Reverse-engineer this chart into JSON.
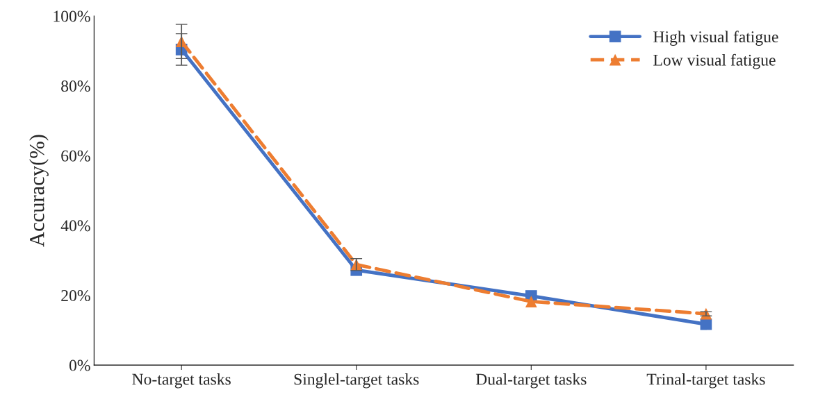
{
  "chart_data": {
    "type": "line",
    "ylabel": "Accuracy(%)",
    "categories": [
      "No-target tasks",
      "Singlel-target tasks",
      "Dual-target tasks",
      "Trinal-target tasks"
    ],
    "series": [
      {
        "name": "High visual fatigue",
        "color": "#4472c4",
        "values": [
          90.4,
          27.2,
          19.8,
          11.7
        ],
        "errors": [
          4.5,
          null,
          null,
          null
        ],
        "marker": "square",
        "line_style": "solid"
      },
      {
        "name": "Low visual fatigue",
        "color": "#ed7d31",
        "values": [
          92.7,
          28.8,
          18.2,
          14.7
        ],
        "errors": [
          4.9,
          1.7,
          null,
          0.6
        ],
        "marker": "triangle",
        "line_style": "dashed"
      }
    ],
    "ylim": [
      0,
      100
    ],
    "yticks": [
      {
        "value": 0,
        "label": "0%"
      },
      {
        "value": 20,
        "label": "20%"
      },
      {
        "value": 40,
        "label": "40%"
      },
      {
        "value": 60,
        "label": "60%"
      },
      {
        "value": 80,
        "label": "80%"
      },
      {
        "value": 100,
        "label": "100%"
      }
    ],
    "grid": false,
    "legend": "top right"
  }
}
